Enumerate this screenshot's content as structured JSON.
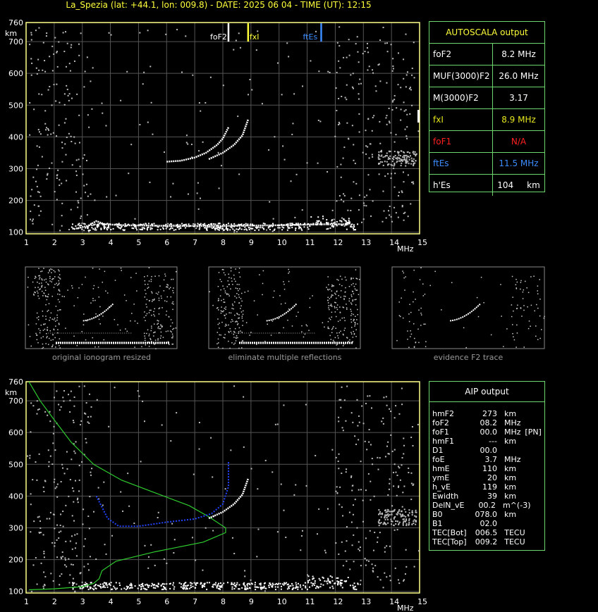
{
  "header": {
    "title": "La_Spezia (lat: +44.1, lon: 009.8) - DATE: 2025 06 04 - TIME (UT): 12:15"
  },
  "chart_data": [
    {
      "type": "scatter",
      "name": "main-ionogram",
      "xlabel": "MHz",
      "ylabel": "km",
      "xlim": [
        1,
        15
      ],
      "ylim": [
        95,
        760
      ],
      "x_ticks": [
        1,
        2,
        3,
        4,
        5,
        6,
        7,
        8,
        9,
        10,
        11,
        12,
        13,
        14,
        15
      ],
      "y_ticks": [
        100,
        200,
        300,
        400,
        500,
        600,
        700,
        760
      ],
      "grid": true,
      "markers": [
        {
          "label": "foF2",
          "freq": 8.2,
          "color": "#ffffff"
        },
        {
          "label": "fxI",
          "freq": 8.9,
          "color": "#ffff3c"
        },
        {
          "label": "ftEs",
          "freq": 11.5,
          "color": "#3c8cff"
        }
      ],
      "traces": [
        {
          "name": "E/Es layer",
          "points": [
            [
              2.7,
              110
            ],
            [
              3.2,
              120
            ],
            [
              3.5,
              135
            ],
            [
              3.8,
              125
            ],
            [
              4.5,
              122
            ],
            [
              6,
              120
            ],
            [
              8,
              120
            ],
            [
              10,
              122
            ],
            [
              11.5,
              125
            ],
            [
              12.5,
              125
            ]
          ]
        },
        {
          "name": "F2 ordinary",
          "points": [
            [
              6.0,
              322
            ],
            [
              6.5,
              325
            ],
            [
              7.0,
              335
            ],
            [
              7.4,
              350
            ],
            [
              7.8,
              375
            ],
            [
              8.0,
              395
            ],
            [
              8.2,
              430
            ]
          ]
        },
        {
          "name": "F2 extraordinary",
          "points": [
            [
              7.5,
              330
            ],
            [
              8.0,
              350
            ],
            [
              8.4,
              375
            ],
            [
              8.7,
              405
            ],
            [
              8.9,
              455
            ]
          ]
        }
      ]
    },
    {
      "type": "scatter",
      "name": "aip-profile-ionogram",
      "xlabel": "MHz",
      "ylabel": "km",
      "xlim": [
        1,
        15
      ],
      "ylim": [
        95,
        760
      ],
      "x_ticks": [
        1,
        2,
        3,
        4,
        5,
        6,
        7,
        8,
        9,
        10,
        11,
        12,
        13,
        14,
        15
      ],
      "y_ticks": [
        100,
        200,
        300,
        400,
        500,
        600,
        700,
        760
      ],
      "grid": true,
      "profile_curve": {
        "color": "#2ecc2e",
        "points": [
          [
            1.1,
            760
          ],
          [
            1.5,
            700
          ],
          [
            2,
            640
          ],
          [
            2.6,
            570
          ],
          [
            3.4,
            500
          ],
          [
            4.4,
            450
          ],
          [
            5.6,
            410
          ],
          [
            6.8,
            370
          ],
          [
            7.5,
            335
          ],
          [
            8.1,
            300
          ],
          [
            8.1,
            285
          ],
          [
            7.3,
            255
          ],
          [
            5.6,
            225
          ],
          [
            4.2,
            195
          ],
          [
            3.7,
            165
          ],
          [
            3.6,
            140
          ],
          [
            3.4,
            125
          ],
          [
            3.0,
            115
          ],
          [
            2,
            108
          ],
          [
            1.1,
            105
          ]
        ]
      },
      "fitted_trace": {
        "color": "#2244ff",
        "points": [
          [
            3.5,
            400
          ],
          [
            3.9,
            330
          ],
          [
            4.3,
            305
          ],
          [
            5,
            305
          ],
          [
            6,
            318
          ],
          [
            7,
            328
          ],
          [
            7.6,
            345
          ],
          [
            8.0,
            375
          ],
          [
            8.2,
            430
          ],
          [
            8.2,
            510
          ]
        ]
      }
    }
  ],
  "autoscala": {
    "title": "AUTOSCALA output",
    "rows": [
      {
        "label": "foF2",
        "value": "8.2 MHz",
        "color": "#ffffff"
      },
      {
        "label": "MUF(3000)F2",
        "value": "26.0 MHz",
        "color": "#ffffff"
      },
      {
        "label": "M(3000)F2",
        "value": "3.17",
        "color": "#ffffff"
      },
      {
        "label": "fxI",
        "value": "8.9 MHz",
        "color": "#e6e61e"
      },
      {
        "label": "foF1",
        "value": "N/A",
        "color": "#ff2020"
      },
      {
        "label": "ftEs",
        "value": "11.5 MHz",
        "color": "#3c8cff"
      },
      {
        "label": "h'Es",
        "value": "104     km",
        "color": "#ffffff"
      }
    ]
  },
  "thumbnails": [
    {
      "caption": "original ionogram resized"
    },
    {
      "caption": "eliminate multiple reflections"
    },
    {
      "caption": "evidence F2 trace"
    }
  ],
  "aip": {
    "title": "AIP output",
    "rows": [
      {
        "k": "hmF2",
        "v": "273",
        "u": "km",
        "x": ""
      },
      {
        "k": "foF2",
        "v": "08.2",
        "u": "MHz",
        "x": ""
      },
      {
        "k": "foF1",
        "v": "00.0",
        "u": "MHz",
        "x": "[PN]"
      },
      {
        "k": "hmF1",
        "v": "---",
        "u": "km",
        "x": ""
      },
      {
        "k": "D1",
        "v": "00.0",
        "u": "",
        "x": ""
      },
      {
        "k": "foE",
        "v": "3.7",
        "u": "MHz",
        "x": ""
      },
      {
        "k": "hmE",
        "v": "110",
        "u": "km",
        "x": ""
      },
      {
        "k": "ymE",
        "v": "20",
        "u": "km",
        "x": ""
      },
      {
        "k": "h_vE",
        "v": "119",
        "u": "km",
        "x": ""
      },
      {
        "k": "Ewidth",
        "v": "39",
        "u": "km",
        "x": ""
      },
      {
        "k": "DelN_vE",
        "v": "00.2",
        "u": "m^(-3)",
        "x": ""
      },
      {
        "k": "B0",
        "v": "078.0",
        "u": "km",
        "x": ""
      },
      {
        "k": "B1",
        "v": "02.0",
        "u": "",
        "x": ""
      },
      {
        "k": "TEC[Bot]",
        "v": "006.5",
        "u": "TECU",
        "x": ""
      },
      {
        "k": "TEC[Top]",
        "v": "009.2",
        "u": "TECU",
        "x": ""
      }
    ]
  }
}
